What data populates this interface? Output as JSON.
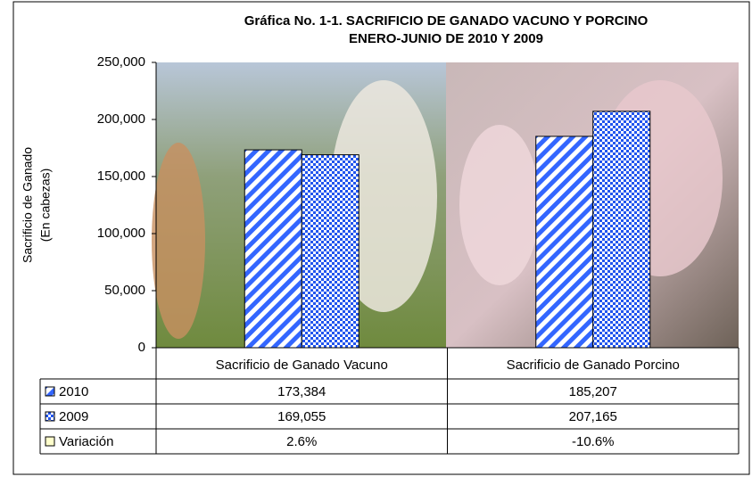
{
  "chart_data": {
    "type": "bar",
    "title": [
      "Gráfica No. 1-1.  SACRIFICIO DE GANADO VACUNO Y PORCINO",
      "ENERO-JUNIO DE 2010 Y 2009"
    ],
    "y_label": [
      "Sacrificio de Ganado",
      "(En cabezas)"
    ],
    "categories": [
      "Sacrificio de Ganado Vacuno",
      "Sacrificio de Ganado Porcino"
    ],
    "series": [
      {
        "name": "2010",
        "color": "#3366ff",
        "pattern": "stripes",
        "values": [
          173384,
          185207
        ],
        "value_labels": [
          "173,384",
          "185,207"
        ]
      },
      {
        "name": "2009",
        "color": "#3366ff",
        "pattern": "checker",
        "values": [
          169055,
          207165
        ],
        "value_labels": [
          "169,055",
          "207,165"
        ]
      },
      {
        "name": "Variación",
        "color": "#ffffcc",
        "pattern": "table",
        "values": [
          2.6,
          -10.6
        ],
        "value_labels": [
          "2.6%",
          "-10.6%"
        ]
      }
    ],
    "ylim": [
      0,
      250000
    ],
    "yticks": [
      0,
      {
        "value": 50000,
        "label": "50,000"
      },
      {
        "value": 100000,
        "label": "100,000"
      },
      {
        "value": 150000,
        "label": "150,000"
      },
      {
        "value": 200000,
        "label": "200,000"
      },
      {
        "value": 250000,
        "label": "250,000"
      }
    ]
  }
}
